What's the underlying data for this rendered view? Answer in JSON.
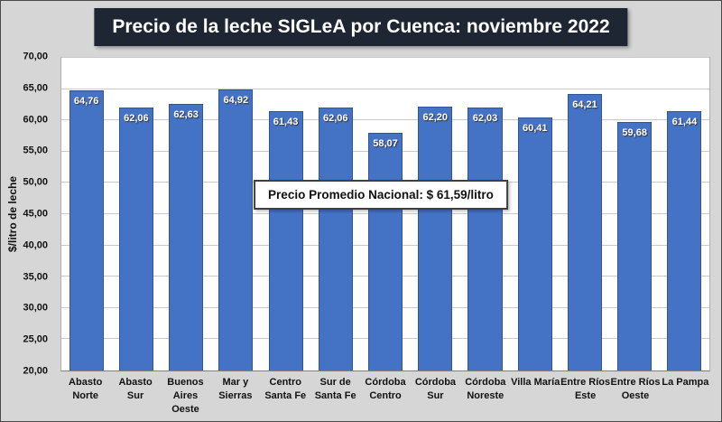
{
  "chart_data": {
    "type": "bar",
    "title": "Precio de la leche SIGLeA por Cuenca: noviembre 2022",
    "ylabel": "$/litro de leche",
    "xlabel": "",
    "ylim": [
      20,
      70
    ],
    "grid": true,
    "legend": false,
    "bar_color": "#4472C4",
    "title_bg_color": "#1f2633",
    "ytick_values": [
      20,
      25,
      30,
      35,
      40,
      45,
      50,
      55,
      60,
      65,
      70
    ],
    "ytick_labels": [
      "20,00",
      "25,00",
      "30,00",
      "35,00",
      "40,00",
      "45,00",
      "50,00",
      "55,00",
      "60,00",
      "65,00",
      "70,00"
    ],
    "categories": [
      "Abasto\nNorte",
      "Abasto Sur",
      "Buenos\nAires\nOeste",
      "Mar y\nSierras",
      "Centro\nSanta Fe",
      "Sur de\nSanta Fe",
      "Córdoba\nCentro",
      "Córdoba\nSur",
      "Córdoba\nNoreste",
      "Villa María",
      "Entre Ríos\nEste",
      "Entre Ríos\nOeste",
      "La Pampa"
    ],
    "values": [
      64.76,
      62.06,
      62.63,
      64.92,
      61.43,
      62.06,
      58.07,
      62.2,
      62.03,
      60.41,
      64.21,
      59.68,
      61.44
    ],
    "value_labels": [
      "64,76",
      "62,06",
      "62,63",
      "64,92",
      "61,43",
      "62,06",
      "58,07",
      "62,20",
      "62,03",
      "60,41",
      "64,21",
      "59,68",
      "61,44"
    ],
    "annotation": "Precio Promedio Nacional: $ 61,59/litro"
  }
}
